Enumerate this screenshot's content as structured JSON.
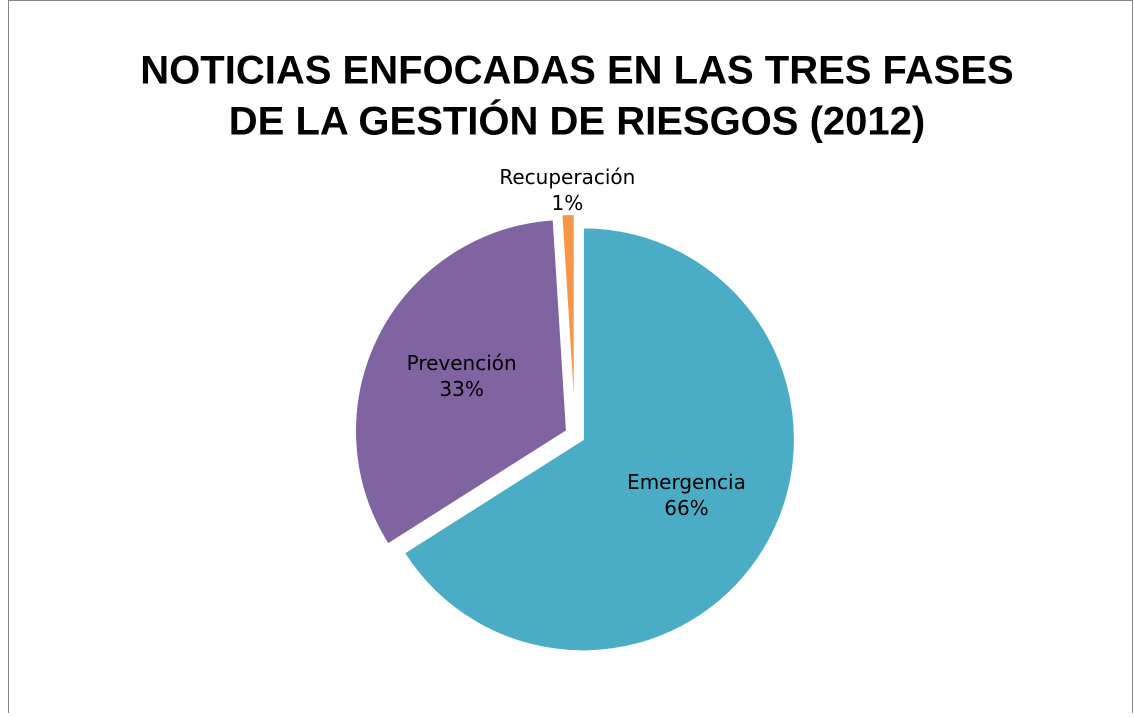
{
  "chart_data": {
    "type": "pie",
    "title": [
      "NOTICIAS ENFOCADAS EN LAS TRES FASES",
      "DE LA GESTIÓN DE RIESGOS (2012)"
    ],
    "categories": [
      "Emergencia",
      "Prevención",
      "Recuperación"
    ],
    "values": [
      66,
      33,
      1
    ],
    "value_labels": [
      "66%",
      "33%",
      "1%"
    ],
    "colors": [
      "#4bacc6",
      "#8064a2",
      "#f79646"
    ]
  }
}
